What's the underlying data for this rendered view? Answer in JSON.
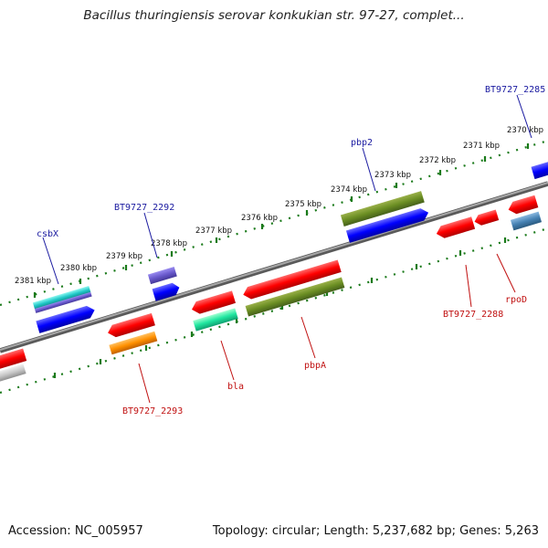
{
  "title": "Bacillus thuringiensis serovar konkukian str. 97-27, complet...",
  "footer": {
    "accession": "Accession: NC_005957",
    "summary": "Topology: circular; Length: 5,237,682 bp; Genes: 5,263"
  },
  "colors": {
    "background": "#ffffff",
    "ruler_ticks": "#1a7a1a",
    "backbone": "#808080",
    "forward_label": "#1a1aa0",
    "reverse_label": "#c01010"
  },
  "ticks": [
    "2381 kbp",
    "2380 kbp",
    "2379 kbp",
    "2378 kbp",
    "2377 kbp",
    "2376 kbp",
    "2375 kbp",
    "2374 kbp",
    "2373 kbp",
    "2372 kbp",
    "2371 kbp",
    "2370 kbp"
  ],
  "labels": {
    "forward": [
      "csbX",
      "BT9727_2292",
      "pbp2",
      "BT9727_2285"
    ],
    "reverse": [
      "BT9727_2293",
      "bla",
      "pbpA",
      "BT9727_2288",
      "rpoD"
    ]
  }
}
